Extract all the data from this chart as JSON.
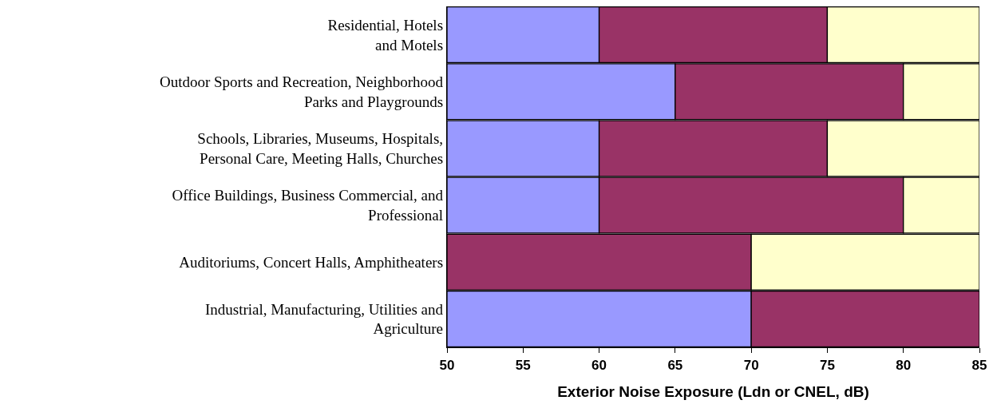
{
  "chart_data": {
    "type": "bar",
    "orientation": "horizontal",
    "xlabel": "Exterior Noise Exposure (Ldn or CNEL, dB)",
    "categories": [
      "Residential, Hotels\nand Motels",
      "Outdoor Sports and Recreation, Neighborhood\nParks and Playgrounds",
      "Schools, Libraries, Museums, Hospitals,\nPersonal Care, Meeting Halls, Churches",
      "Office Buildings, Business Commercial, and\nProfessional",
      "Auditoriums, Concert Halls, Amphitheaters",
      "Industrial, Manufacturing, Utilities and\nAgriculture"
    ],
    "series": [
      {
        "color": "#9999ff",
        "base": [
          50,
          50,
          50,
          50,
          null,
          50
        ],
        "values": [
          10,
          15,
          10,
          10,
          null,
          20
        ]
      },
      {
        "color": "#993366",
        "base": [
          60,
          65,
          60,
          60,
          50,
          70
        ],
        "values": [
          15,
          15,
          15,
          20,
          20,
          15
        ]
      },
      {
        "color": "#ffffcc",
        "base": [
          75,
          80,
          75,
          80,
          70,
          null
        ],
        "values": [
          10,
          5,
          10,
          5,
          15,
          null
        ]
      }
    ],
    "xlim": [
      50,
      85
    ],
    "xticks": [
      50,
      55,
      60,
      65,
      70,
      75,
      80,
      85
    ],
    "grid": false
  }
}
